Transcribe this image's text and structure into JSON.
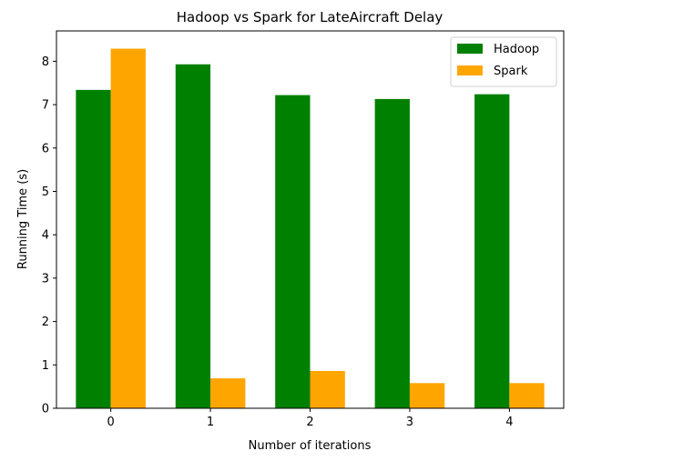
{
  "chart_data": {
    "type": "bar",
    "title": "Hadoop vs Spark for LateAircraft Delay",
    "xlabel": "Number of iterations",
    "ylabel": "Running Time (s)",
    "categories": [
      "0",
      "1",
      "2",
      "3",
      "4"
    ],
    "series": [
      {
        "name": "Hadoop",
        "color": "#008000",
        "values": [
          7.34,
          7.93,
          7.22,
          7.13,
          7.24
        ]
      },
      {
        "name": "Spark",
        "color": "#FFA500",
        "values": [
          8.29,
          0.69,
          0.86,
          0.58,
          0.58
        ]
      }
    ],
    "yticks": [
      "0",
      "1",
      "2",
      "3",
      "4",
      "5",
      "6",
      "7",
      "8"
    ],
    "ylim": [
      0,
      8.7
    ],
    "grid": false,
    "legend_position": "top-right"
  }
}
